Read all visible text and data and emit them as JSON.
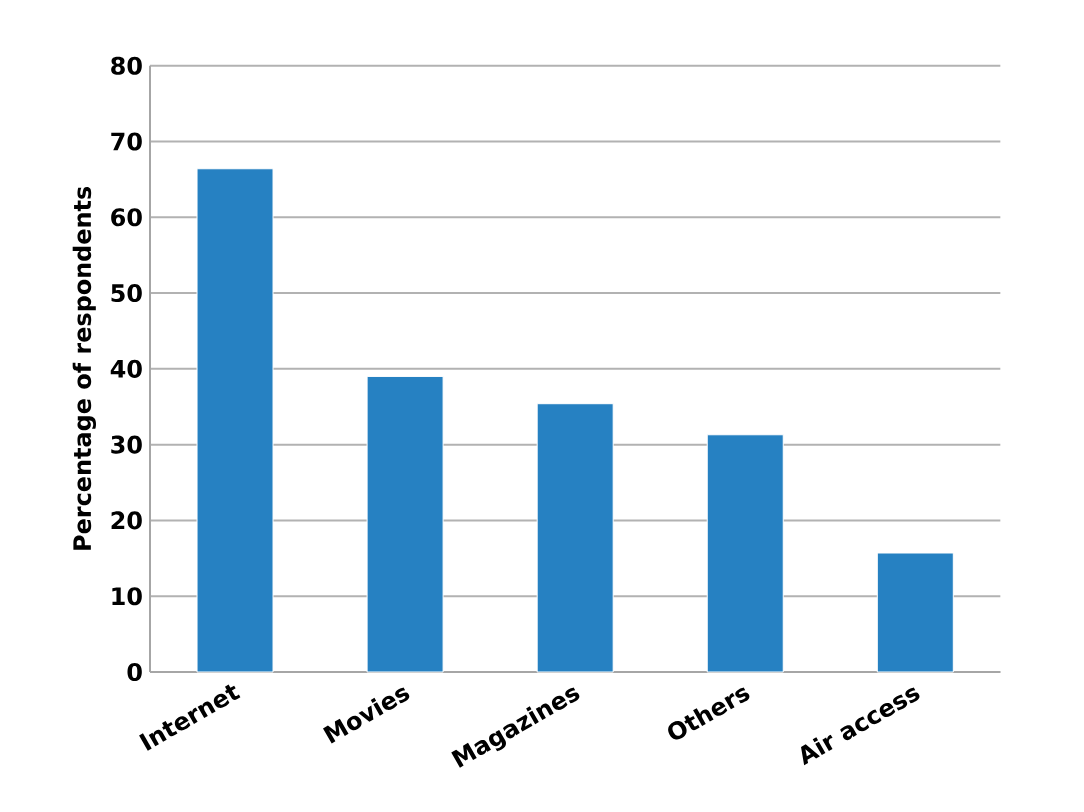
{
  "chart_data": {
    "type": "bar",
    "ylabel": "Percentage of respondents",
    "categories": [
      "Internet",
      "Movies",
      "Magazines",
      "Others",
      "Air access"
    ],
    "values": [
      66.4,
      39.0,
      35.4,
      31.3,
      15.7
    ],
    "color": "#2681c2",
    "ylim": [
      0,
      80
    ],
    "yticks": [
      0,
      10,
      20,
      30,
      40,
      50,
      60,
      70,
      80
    ],
    "grid": "y"
  }
}
